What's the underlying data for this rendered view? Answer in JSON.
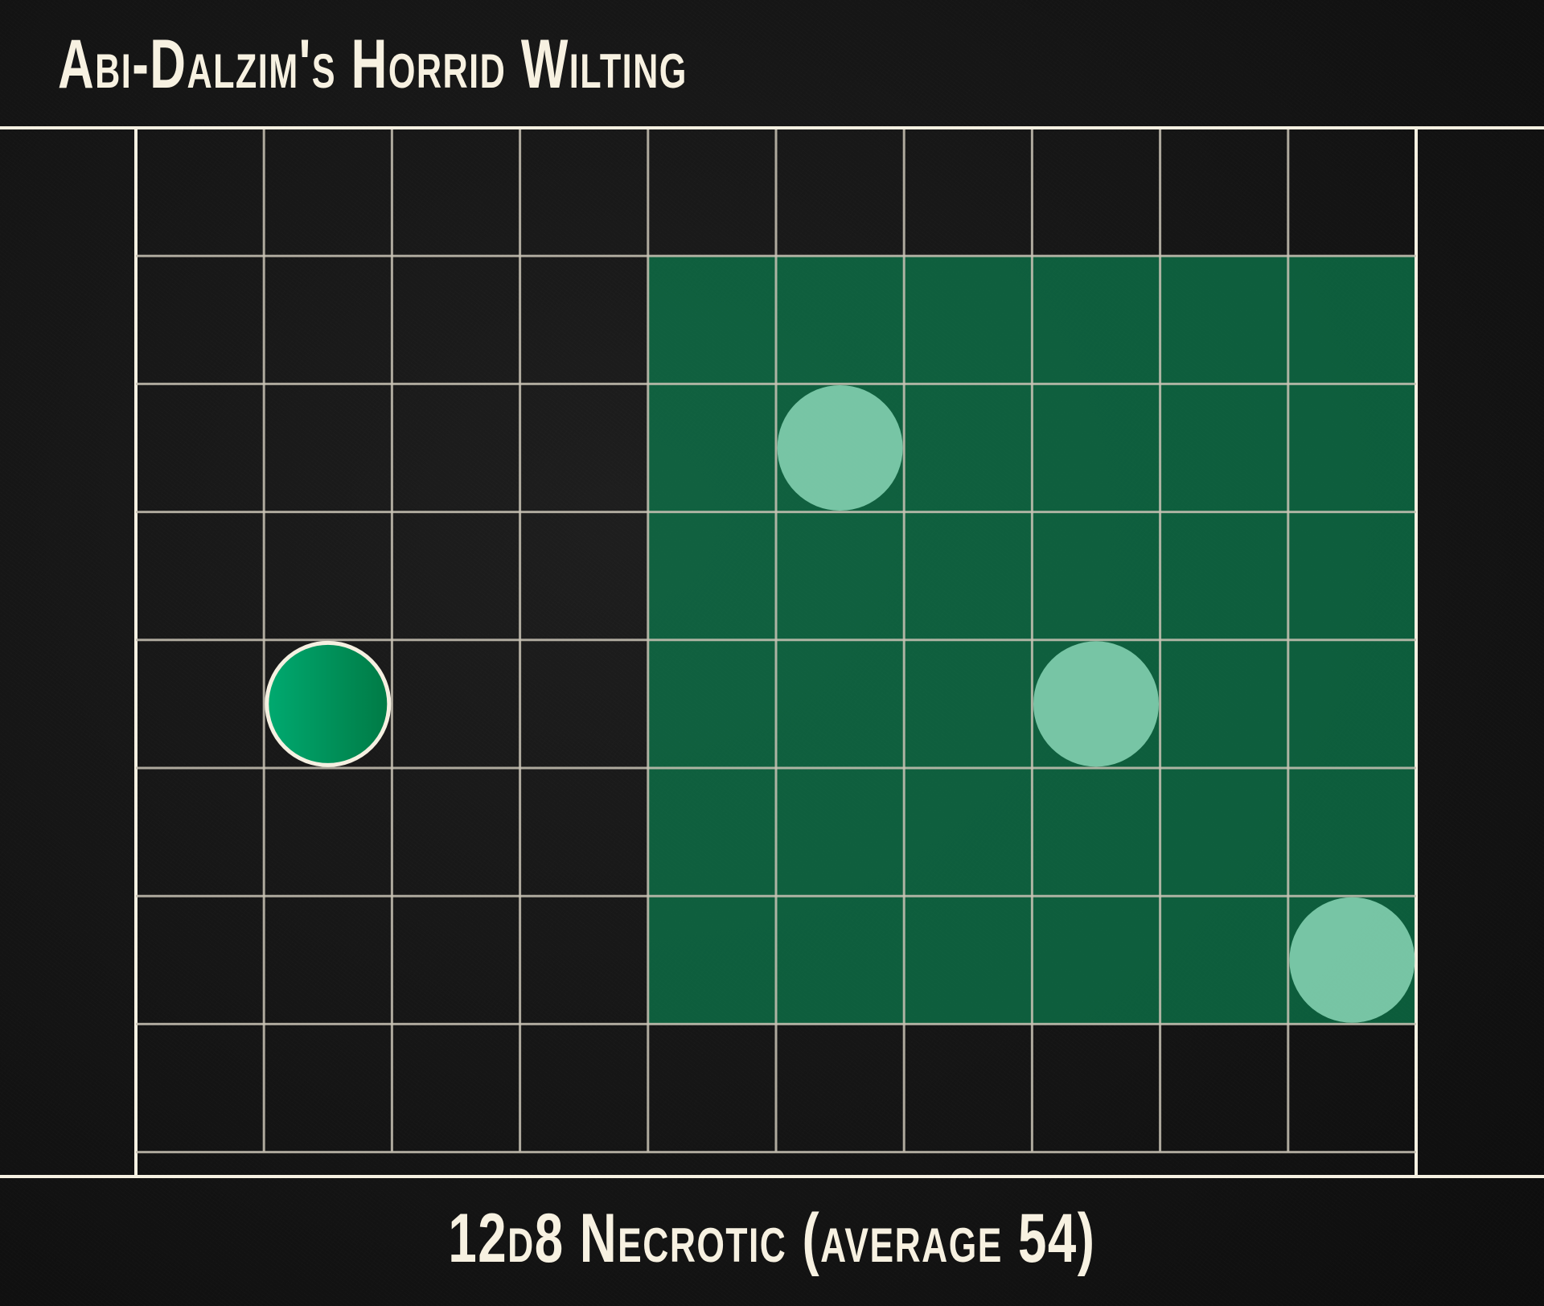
{
  "title": "Abi-Dalzim's Horrid Wilting",
  "caption": "12d8 Necrotic (average 54)",
  "colors": {
    "background": "#141414",
    "grid_line": "#c9c3b5",
    "frame_line": "#f5f0e1",
    "area_fill": "#0a8a55",
    "caster_token": "#00a06a",
    "target_token": "#8fdcbc"
  },
  "grid": {
    "columns": 10,
    "rows": 8,
    "area": {
      "from_col": 4,
      "to_col": 10,
      "from_row": 1,
      "to_row": 7
    }
  },
  "tokens": [
    {
      "role": "caster",
      "col": 1,
      "row": 4
    },
    {
      "role": "target",
      "col": 5,
      "row": 2
    },
    {
      "role": "target",
      "col": 7,
      "row": 4
    },
    {
      "role": "target",
      "col": 9,
      "row": 6
    }
  ]
}
